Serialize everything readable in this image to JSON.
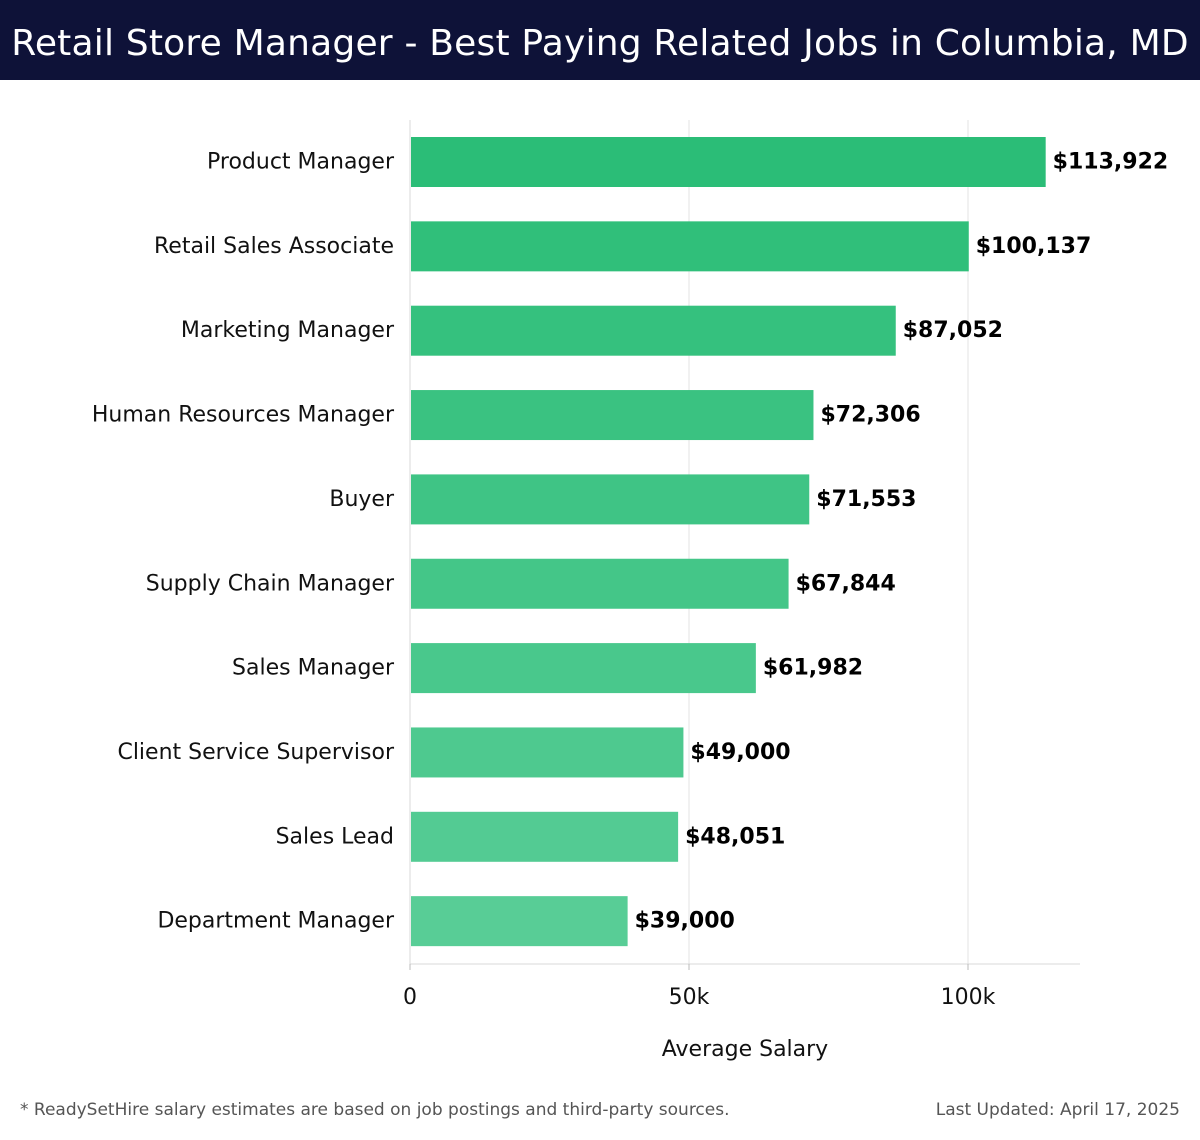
{
  "header": {
    "title": "Retail Store Manager - Best Paying Related Jobs in Columbia, MD"
  },
  "footer": {
    "note": "* ReadySetHire salary estimates are based on job postings and third-party sources.",
    "updated": "Last Updated: April 17, 2025"
  },
  "colors": {
    "header_bg": "#0e1238",
    "bar_dark": "#2bbd77",
    "bar_light": "#58cd96"
  },
  "chart_data": {
    "type": "bar",
    "orientation": "horizontal",
    "title": "Retail Store Manager - Best Paying Related Jobs in Columbia, MD",
    "xlabel": "Average Salary",
    "ylabel": "",
    "categories": [
      "Product Manager",
      "Retail Sales Associate",
      "Marketing Manager",
      "Human Resources Manager",
      "Buyer",
      "Supply Chain Manager",
      "Sales Manager",
      "Client Service Supervisor",
      "Sales Lead",
      "Department Manager"
    ],
    "values": [
      113922,
      100137,
      87052,
      72306,
      71553,
      67844,
      61982,
      49000,
      48051,
      39000
    ],
    "value_labels": [
      "$113,922",
      "$100,137",
      "$87,052",
      "$72,306",
      "$71,553",
      "$67,844",
      "$61,982",
      "$49,000",
      "$48,051",
      "$39,000"
    ],
    "xlim": [
      0,
      120000
    ],
    "xticks": [
      0,
      50000,
      100000
    ],
    "xtick_labels": [
      "0",
      "50k",
      "100k"
    ],
    "grid": true
  }
}
